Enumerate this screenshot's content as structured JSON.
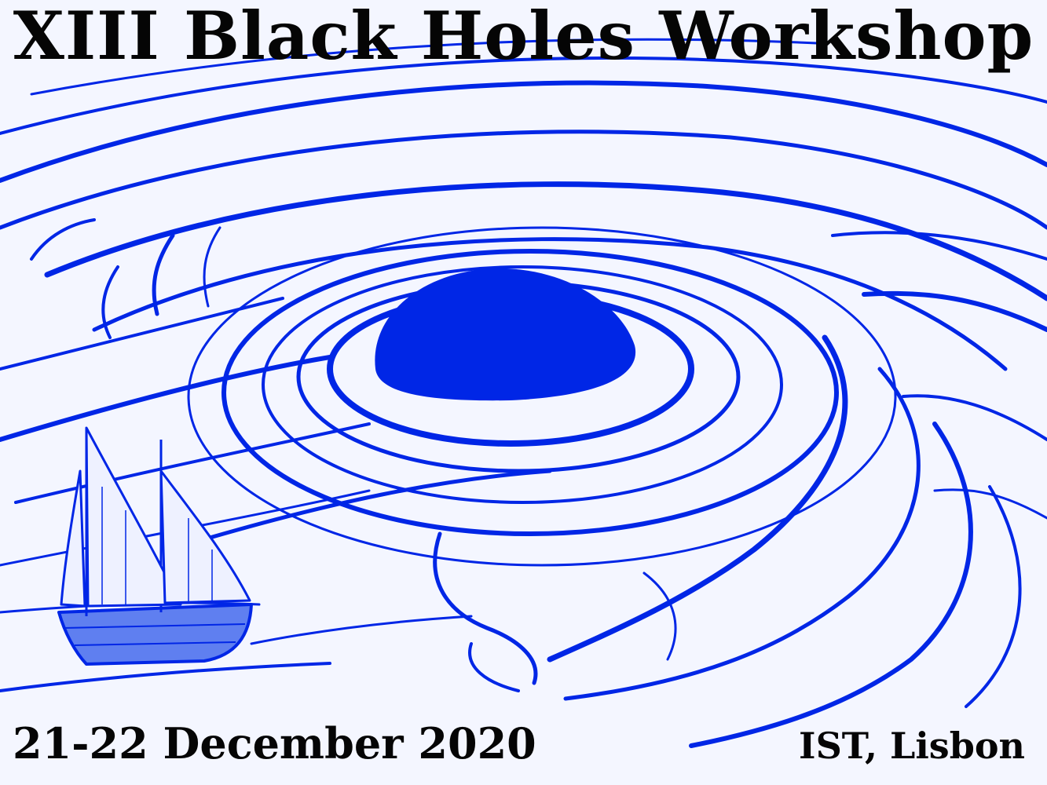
{
  "poster": {
    "title": "XIII Black Holes Workshop",
    "date": "21-22 December 2020",
    "venue": "IST, Lisbon"
  },
  "colors": {
    "background": "#f4f6ff",
    "ink_blue": "#0026e6",
    "text": "#050505"
  },
  "illustration": {
    "main_subject": "black-hole",
    "secondary_subject": "sailing-ship"
  }
}
